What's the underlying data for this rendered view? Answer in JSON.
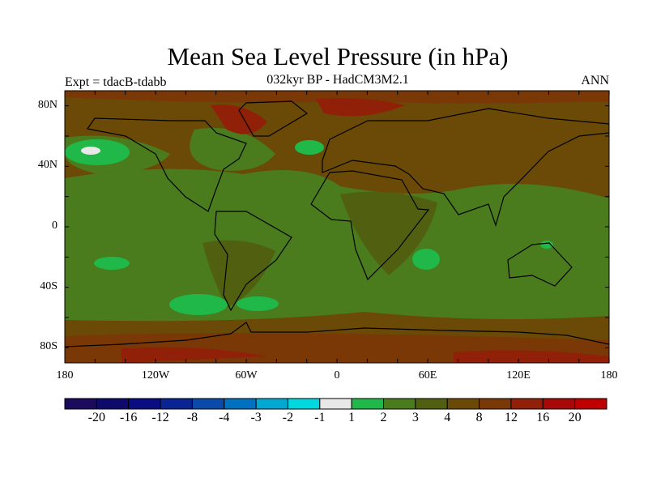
{
  "title": "Mean Sea Level Pressure (in hPa)",
  "subtitle": "032kyr BP - HadCM3M2.1",
  "left_label": "Expt = tdacB-tdabb",
  "right_label": "ANN",
  "lat_ticks": [
    "80N",
    "40N",
    "0",
    "40S",
    "80S"
  ],
  "lon_ticks": [
    "180",
    "120W",
    "60W",
    "0",
    "60E",
    "120E",
    "180"
  ],
  "colorbar": {
    "labels": [
      "-20",
      "-16",
      "-12",
      "-8",
      "-4",
      "-3",
      "-2",
      "-1",
      "1",
      "2",
      "3",
      "4",
      "8",
      "12",
      "16",
      "20"
    ],
    "colors": [
      "#1c0a5c",
      "#0e0a6c",
      "#0a0c82",
      "#0a2494",
      "#0a4aaa",
      "#0070c0",
      "#00a8d2",
      "#00d8e0",
      "#e8e8e8",
      "#20b848",
      "#4a7c1e",
      "#506010",
      "#6a4a06",
      "#7a3806",
      "#902008",
      "#a80808",
      "#c00000"
    ]
  }
}
